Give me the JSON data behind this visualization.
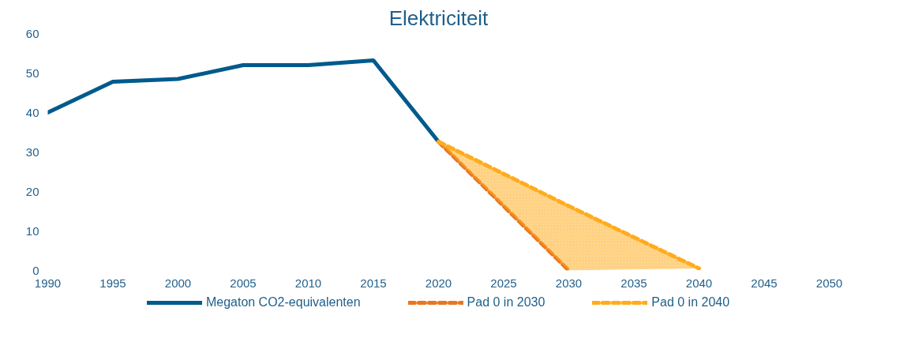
{
  "chart_data": {
    "type": "line",
    "title": "Elektriciteit",
    "series": [
      {
        "name": "Megaton CO2-equivalenten",
        "color": "#005a8c",
        "x": [
          1990,
          1995,
          2000,
          2005,
          2010,
          2015,
          2020
        ],
        "values": [
          40,
          47.8,
          48.5,
          52,
          52,
          53.2,
          32.6
        ],
        "line_style": "solid"
      },
      {
        "name": "Pad 0 in 2030",
        "color": "#e87722",
        "x": [
          2020,
          2030
        ],
        "values": [
          32.6,
          0
        ],
        "line_style": "dashed"
      },
      {
        "name": "Pad 0 in 2040",
        "color": "#ffac1c",
        "x": [
          2020,
          2030,
          2040
        ],
        "values": [
          32.6,
          16.3,
          0.5
        ],
        "lower": [
          32.6,
          0,
          0.5
        ],
        "upper": [
          32.6,
          16.3,
          0.5
        ],
        "line_style": "dashed"
      }
    ],
    "xlim": [
      1990,
      2050
    ],
    "xticks": [
      1990,
      1995,
      2000,
      2005,
      2010,
      2015,
      2020,
      2025,
      2030,
      2035,
      2040,
      2045,
      2050
    ],
    "ylim": [
      0,
      60
    ],
    "yticks": [
      0,
      10,
      20,
      30,
      40,
      50,
      60
    ],
    "grid": false,
    "legend": "bottom",
    "marker": "none"
  }
}
